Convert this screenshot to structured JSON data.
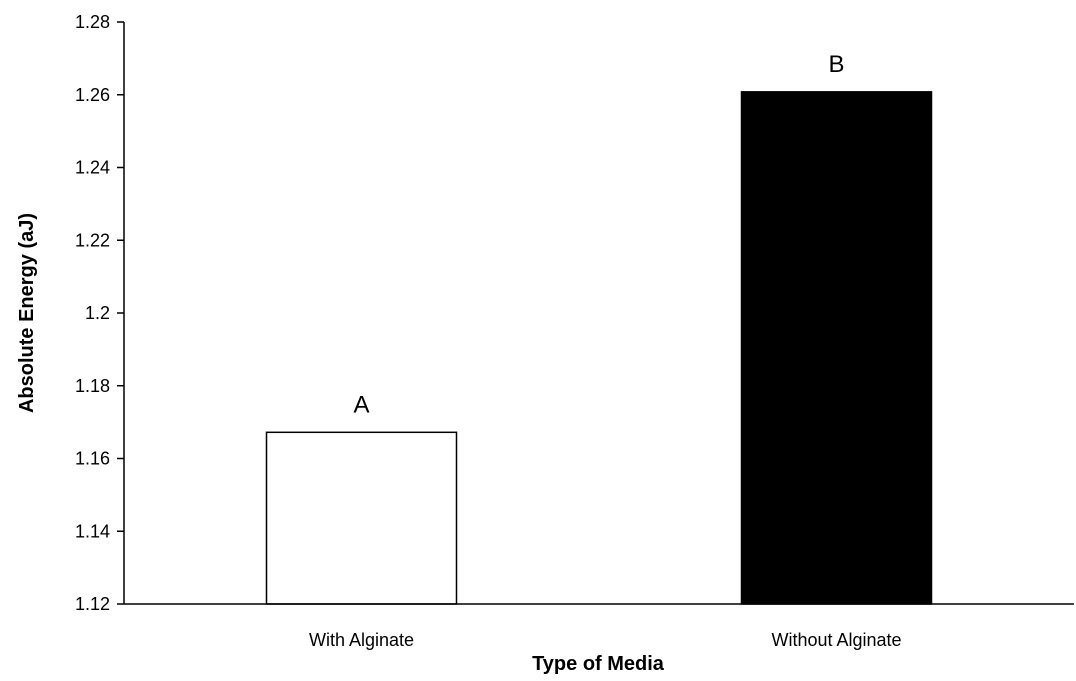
{
  "chart_data": {
    "type": "bar",
    "title": "",
    "xlabel": "Type of Media",
    "ylabel": "Absolute Energy (aJ)",
    "categories": [
      "With Alginate",
      "Without Alginate"
    ],
    "values": [
      1.1672,
      1.2608
    ],
    "bar_labels": [
      "A",
      "B"
    ],
    "bar_colors": [
      "#ffffff",
      "#000000"
    ],
    "ylim": [
      1.12,
      1.28
    ],
    "yticks": [
      "1.12",
      "1.14",
      "1.16",
      "1.18",
      "1.2",
      "1.22",
      "1.24",
      "1.26",
      "1.28"
    ],
    "grid": false,
    "legend": "none"
  }
}
